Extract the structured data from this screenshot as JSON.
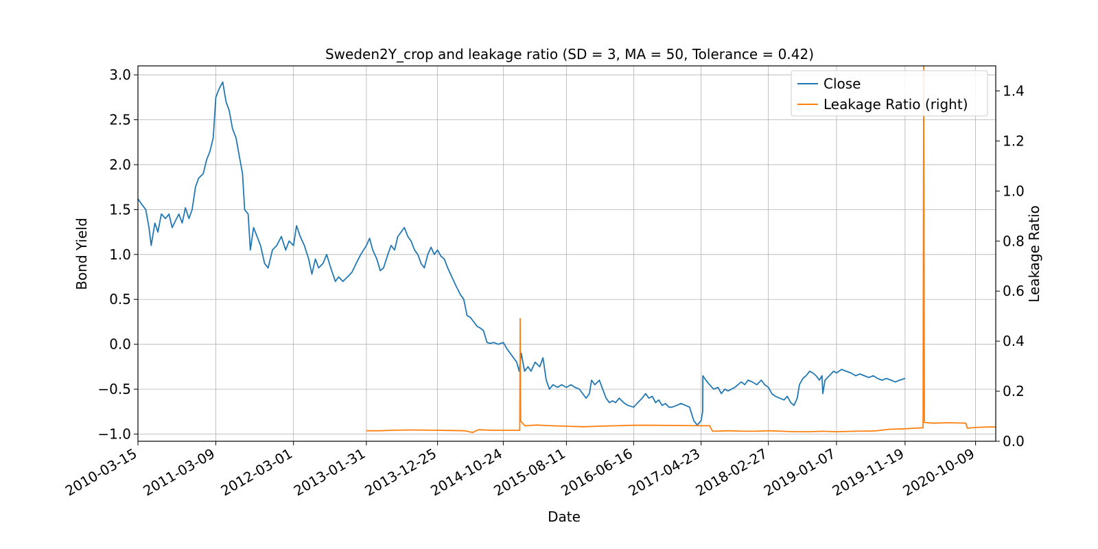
{
  "chart_data": {
    "type": "line",
    "title": "Sweden2Y_crop and leakage ratio (SD = 3, MA = 50, Tolerance  = 0.42)",
    "xlabel": "Date",
    "ylabel": "Bond Yield",
    "ylabel_right": "Leakage Ratio",
    "x_range": [
      "2010-03-15",
      "2021-01-10"
    ],
    "ylim": [
      -1.08,
      3.1
    ],
    "ylim_right": [
      0.0,
      1.5
    ],
    "x_ticks": [
      "2010-03-15",
      "2011-03-09",
      "2012-03-01",
      "2013-01-31",
      "2013-12-25",
      "2014-10-24",
      "2015-08-11",
      "2016-06-16",
      "2017-04-23",
      "2018-02-27",
      "2019-01-07",
      "2019-11-19",
      "2020-10-09"
    ],
    "y_ticks": [
      "3.0",
      "2.5",
      "2.0",
      "1.5",
      "1.0",
      "0.5",
      "0.0",
      "−0.5",
      "−1.0"
    ],
    "y_tick_values": [
      3.0,
      2.5,
      2.0,
      1.5,
      1.0,
      0.5,
      0.0,
      -0.5,
      -1.0
    ],
    "y_right_ticks": [
      "1.4",
      "1.2",
      "1.0",
      "0.8",
      "0.6",
      "0.4",
      "0.2",
      "0.0"
    ],
    "y_right_tick_values": [
      1.4,
      1.2,
      1.0,
      0.8,
      0.6,
      0.4,
      0.2,
      0.0
    ],
    "grid": true,
    "legend_position": "top-right",
    "series": [
      {
        "name": "Close",
        "axis": "left",
        "color": "#1f77b4",
        "points": [
          [
            "2010-03-15",
            1.62
          ],
          [
            "2010-04-01",
            1.56
          ],
          [
            "2010-04-20",
            1.5
          ],
          [
            "2010-05-05",
            1.3
          ],
          [
            "2010-05-15",
            1.1
          ],
          [
            "2010-06-01",
            1.35
          ],
          [
            "2010-06-15",
            1.25
          ],
          [
            "2010-07-01",
            1.45
          ],
          [
            "2010-07-20",
            1.4
          ],
          [
            "2010-08-05",
            1.45
          ],
          [
            "2010-08-20",
            1.3
          ],
          [
            "2010-09-05",
            1.38
          ],
          [
            "2010-09-20",
            1.45
          ],
          [
            "2010-10-05",
            1.35
          ],
          [
            "2010-10-20",
            1.52
          ],
          [
            "2010-11-05",
            1.4
          ],
          [
            "2010-11-20",
            1.5
          ],
          [
            "2010-12-05",
            1.75
          ],
          [
            "2010-12-20",
            1.85
          ],
          [
            "2011-01-10",
            1.9
          ],
          [
            "2011-01-25",
            2.05
          ],
          [
            "2011-02-10",
            2.15
          ],
          [
            "2011-02-25",
            2.3
          ],
          [
            "2011-03-09",
            2.75
          ],
          [
            "2011-03-25",
            2.85
          ],
          [
            "2011-04-10",
            2.92
          ],
          [
            "2011-04-25",
            2.7
          ],
          [
            "2011-05-10",
            2.6
          ],
          [
            "2011-05-25",
            2.4
          ],
          [
            "2011-06-10",
            2.3
          ],
          [
            "2011-06-25",
            2.1
          ],
          [
            "2011-07-10",
            1.9
          ],
          [
            "2011-07-20",
            1.5
          ],
          [
            "2011-08-05",
            1.45
          ],
          [
            "2011-08-15",
            1.05
          ],
          [
            "2011-08-30",
            1.3
          ],
          [
            "2011-09-15",
            1.2
          ],
          [
            "2011-10-01",
            1.1
          ],
          [
            "2011-10-20",
            0.9
          ],
          [
            "2011-11-05",
            0.85
          ],
          [
            "2011-11-25",
            1.05
          ],
          [
            "2011-12-15",
            1.1
          ],
          [
            "2012-01-05",
            1.2
          ],
          [
            "2012-01-25",
            1.05
          ],
          [
            "2012-02-10",
            1.15
          ],
          [
            "2012-03-01",
            1.1
          ],
          [
            "2012-03-15",
            1.32
          ],
          [
            "2012-04-01",
            1.2
          ],
          [
            "2012-04-20",
            1.1
          ],
          [
            "2012-05-10",
            0.95
          ],
          [
            "2012-05-25",
            0.78
          ],
          [
            "2012-06-10",
            0.95
          ],
          [
            "2012-06-25",
            0.85
          ],
          [
            "2012-07-15",
            0.9
          ],
          [
            "2012-08-01",
            1.0
          ],
          [
            "2012-08-20",
            0.85
          ],
          [
            "2012-09-10",
            0.7
          ],
          [
            "2012-09-25",
            0.75
          ],
          [
            "2012-10-15",
            0.7
          ],
          [
            "2012-11-05",
            0.75
          ],
          [
            "2012-11-25",
            0.8
          ],
          [
            "2012-12-15",
            0.9
          ],
          [
            "2013-01-05",
            1.0
          ],
          [
            "2013-01-31",
            1.1
          ],
          [
            "2013-02-15",
            1.18
          ],
          [
            "2013-03-01",
            1.05
          ],
          [
            "2013-03-20",
            0.95
          ],
          [
            "2013-04-05",
            0.82
          ],
          [
            "2013-04-20",
            0.85
          ],
          [
            "2013-05-10",
            1.0
          ],
          [
            "2013-05-25",
            1.1
          ],
          [
            "2013-06-10",
            1.05
          ],
          [
            "2013-06-25",
            1.2
          ],
          [
            "2013-07-10",
            1.25
          ],
          [
            "2013-07-25",
            1.3
          ],
          [
            "2013-08-10",
            1.2
          ],
          [
            "2013-08-25",
            1.15
          ],
          [
            "2013-09-10",
            1.05
          ],
          [
            "2013-09-25",
            1.0
          ],
          [
            "2013-10-10",
            0.9
          ],
          [
            "2013-10-25",
            0.85
          ],
          [
            "2013-11-10",
            1.0
          ],
          [
            "2013-11-25",
            1.08
          ],
          [
            "2013-12-10",
            1.0
          ],
          [
            "2013-12-25",
            1.05
          ],
          [
            "2014-01-10",
            0.98
          ],
          [
            "2014-01-25",
            0.95
          ],
          [
            "2014-02-10",
            0.85
          ],
          [
            "2014-03-01",
            0.75
          ],
          [
            "2014-03-20",
            0.65
          ],
          [
            "2014-04-10",
            0.55
          ],
          [
            "2014-04-25",
            0.5
          ],
          [
            "2014-05-10",
            0.32
          ],
          [
            "2014-05-25",
            0.3
          ],
          [
            "2014-06-10",
            0.25
          ],
          [
            "2014-06-25",
            0.2
          ],
          [
            "2014-07-10",
            0.18
          ],
          [
            "2014-07-25",
            0.15
          ],
          [
            "2014-08-10",
            0.02
          ],
          [
            "2014-08-25",
            0.01
          ],
          [
            "2014-09-10",
            0.02
          ],
          [
            "2014-10-01",
            0.0
          ],
          [
            "2014-10-24",
            0.02
          ],
          [
            "2014-11-10",
            -0.05
          ],
          [
            "2014-11-25",
            -0.1
          ],
          [
            "2014-12-10",
            -0.15
          ],
          [
            "2014-12-25",
            -0.2
          ],
          [
            "2015-01-05",
            -0.3
          ],
          [
            "2015-01-15",
            -0.1
          ],
          [
            "2015-01-30",
            -0.3
          ],
          [
            "2015-02-15",
            -0.25
          ],
          [
            "2015-03-01",
            -0.3
          ],
          [
            "2015-03-20",
            -0.2
          ],
          [
            "2015-04-10",
            -0.25
          ],
          [
            "2015-04-25",
            -0.15
          ],
          [
            "2015-05-10",
            -0.4
          ],
          [
            "2015-05-25",
            -0.5
          ],
          [
            "2015-06-10",
            -0.45
          ],
          [
            "2015-07-01",
            -0.48
          ],
          [
            "2015-07-20",
            -0.45
          ],
          [
            "2015-08-11",
            -0.48
          ],
          [
            "2015-09-01",
            -0.45
          ],
          [
            "2015-09-20",
            -0.48
          ],
          [
            "2015-10-10",
            -0.5
          ],
          [
            "2015-10-25",
            -0.55
          ],
          [
            "2015-11-10",
            -0.6
          ],
          [
            "2015-11-25",
            -0.55
          ],
          [
            "2015-12-05",
            -0.4
          ],
          [
            "2015-12-20",
            -0.45
          ],
          [
            "2016-01-10",
            -0.4
          ],
          [
            "2016-01-25",
            -0.5
          ],
          [
            "2016-02-10",
            -0.6
          ],
          [
            "2016-02-25",
            -0.65
          ],
          [
            "2016-03-10",
            -0.63
          ],
          [
            "2016-03-25",
            -0.65
          ],
          [
            "2016-04-10",
            -0.6
          ],
          [
            "2016-05-01",
            -0.65
          ],
          [
            "2016-05-20",
            -0.68
          ],
          [
            "2016-06-16",
            -0.7
          ],
          [
            "2016-07-05",
            -0.65
          ],
          [
            "2016-07-25",
            -0.6
          ],
          [
            "2016-08-10",
            -0.55
          ],
          [
            "2016-08-25",
            -0.6
          ],
          [
            "2016-09-10",
            -0.58
          ],
          [
            "2016-09-25",
            -0.65
          ],
          [
            "2016-10-10",
            -0.62
          ],
          [
            "2016-10-25",
            -0.68
          ],
          [
            "2016-11-10",
            -0.66
          ],
          [
            "2016-11-25",
            -0.7
          ],
          [
            "2016-12-10",
            -0.7
          ],
          [
            "2017-01-01",
            -0.68
          ],
          [
            "2017-01-20",
            -0.66
          ],
          [
            "2017-02-10",
            -0.68
          ],
          [
            "2017-03-01",
            -0.7
          ],
          [
            "2017-03-20",
            -0.85
          ],
          [
            "2017-04-05",
            -0.9
          ],
          [
            "2017-04-23",
            -0.85
          ],
          [
            "2017-04-30",
            -0.75
          ],
          [
            "2017-05-01",
            -0.35
          ],
          [
            "2017-05-15",
            -0.4
          ],
          [
            "2017-06-01",
            -0.45
          ],
          [
            "2017-06-20",
            -0.5
          ],
          [
            "2017-07-10",
            -0.48
          ],
          [
            "2017-07-25",
            -0.55
          ],
          [
            "2017-08-10",
            -0.5
          ],
          [
            "2017-08-25",
            -0.52
          ],
          [
            "2017-09-10",
            -0.5
          ],
          [
            "2017-09-25",
            -0.48
          ],
          [
            "2017-10-10",
            -0.45
          ],
          [
            "2017-10-25",
            -0.42
          ],
          [
            "2017-11-10",
            -0.45
          ],
          [
            "2017-11-25",
            -0.4
          ],
          [
            "2017-12-15",
            -0.42
          ],
          [
            "2018-01-05",
            -0.45
          ],
          [
            "2018-01-25",
            -0.4
          ],
          [
            "2018-02-10",
            -0.45
          ],
          [
            "2018-02-27",
            -0.48
          ],
          [
            "2018-03-15",
            -0.55
          ],
          [
            "2018-04-01",
            -0.58
          ],
          [
            "2018-04-20",
            -0.6
          ],
          [
            "2018-05-10",
            -0.62
          ],
          [
            "2018-05-25",
            -0.58
          ],
          [
            "2018-06-10",
            -0.65
          ],
          [
            "2018-06-25",
            -0.68
          ],
          [
            "2018-07-10",
            -0.6
          ],
          [
            "2018-07-20",
            -0.45
          ],
          [
            "2018-08-05",
            -0.38
          ],
          [
            "2018-08-20",
            -0.35
          ],
          [
            "2018-09-05",
            -0.3
          ],
          [
            "2018-09-20",
            -0.32
          ],
          [
            "2018-10-05",
            -0.35
          ],
          [
            "2018-10-20",
            -0.4
          ],
          [
            "2018-11-01",
            -0.35
          ],
          [
            "2018-11-05",
            -0.55
          ],
          [
            "2018-11-15",
            -0.4
          ],
          [
            "2018-12-05",
            -0.35
          ],
          [
            "2018-12-25",
            -0.3
          ],
          [
            "2019-01-07",
            -0.32
          ],
          [
            "2019-01-30",
            -0.28
          ],
          [
            "2019-02-20",
            -0.3
          ],
          [
            "2019-03-15",
            -0.32
          ],
          [
            "2019-04-05",
            -0.35
          ],
          [
            "2019-04-25",
            -0.33
          ],
          [
            "2019-05-15",
            -0.35
          ],
          [
            "2019-06-05",
            -0.37
          ],
          [
            "2019-06-25",
            -0.35
          ],
          [
            "2019-07-15",
            -0.38
          ],
          [
            "2019-08-05",
            -0.4
          ],
          [
            "2019-08-25",
            -0.38
          ],
          [
            "2019-09-15",
            -0.4
          ],
          [
            "2019-10-05",
            -0.42
          ],
          [
            "2019-10-25",
            -0.4
          ],
          [
            "2019-11-19",
            -0.38
          ]
        ]
      },
      {
        "name": "Leakage Ratio (right)",
        "axis": "right",
        "color": "#ff7f0e",
        "points": [
          [
            "2013-01-31",
            0.042
          ],
          [
            "2013-04-01",
            0.042
          ],
          [
            "2013-06-01",
            0.044
          ],
          [
            "2013-08-01",
            0.045
          ],
          [
            "2013-10-01",
            0.045
          ],
          [
            "2013-12-25",
            0.044
          ],
          [
            "2014-03-01",
            0.043
          ],
          [
            "2014-05-01",
            0.042
          ],
          [
            "2014-06-05",
            0.035
          ],
          [
            "2014-07-01",
            0.046
          ],
          [
            "2014-09-01",
            0.044
          ],
          [
            "2014-10-24",
            0.044
          ],
          [
            "2014-12-01",
            0.044
          ],
          [
            "2015-01-08",
            0.044
          ],
          [
            "2015-01-10",
            0.49
          ],
          [
            "2015-01-12",
            0.08
          ],
          [
            "2015-02-01",
            0.062
          ],
          [
            "2015-04-01",
            0.065
          ],
          [
            "2015-05-01",
            0.063
          ],
          [
            "2015-06-01",
            0.062
          ],
          [
            "2015-08-11",
            0.06
          ],
          [
            "2015-11-01",
            0.058
          ],
          [
            "2016-01-01",
            0.06
          ],
          [
            "2016-06-16",
            0.064
          ],
          [
            "2016-09-01",
            0.064
          ],
          [
            "2017-01-01",
            0.063
          ],
          [
            "2017-04-23",
            0.062
          ],
          [
            "2017-06-01",
            0.062
          ],
          [
            "2017-06-15",
            0.04
          ],
          [
            "2017-09-01",
            0.042
          ],
          [
            "2017-11-01",
            0.04
          ],
          [
            "2018-01-01",
            0.04
          ],
          [
            "2018-02-27",
            0.042
          ],
          [
            "2018-05-01",
            0.04
          ],
          [
            "2018-07-01",
            0.038
          ],
          [
            "2018-09-01",
            0.038
          ],
          [
            "2018-11-01",
            0.04
          ],
          [
            "2019-01-07",
            0.038
          ],
          [
            "2019-04-01",
            0.04
          ],
          [
            "2019-07-01",
            0.041
          ],
          [
            "2019-09-10",
            0.048
          ],
          [
            "2019-11-19",
            0.05
          ],
          [
            "2020-01-01",
            0.052
          ],
          [
            "2020-02-10",
            0.054
          ],
          [
            "2020-02-13",
            1.5
          ],
          [
            "2020-02-16",
            0.075
          ],
          [
            "2020-04-01",
            0.072
          ],
          [
            "2020-06-01",
            0.074
          ],
          [
            "2020-08-01",
            0.073
          ],
          [
            "2020-08-25",
            0.072
          ],
          [
            "2020-09-01",
            0.052
          ],
          [
            "2020-10-09",
            0.055
          ],
          [
            "2020-12-01",
            0.057
          ],
          [
            "2021-01-10",
            0.057
          ]
        ]
      }
    ]
  }
}
